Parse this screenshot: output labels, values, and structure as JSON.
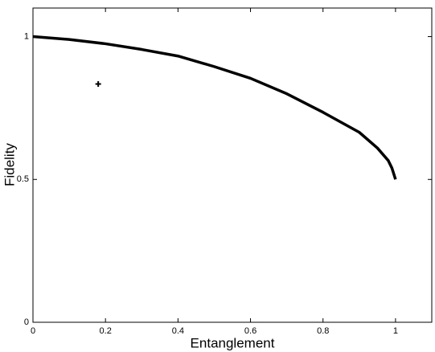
{
  "chart_data": {
    "type": "line",
    "x_label": "Entanglement",
    "y_label": "Fidelity",
    "xlim": [
      0,
      1.1
    ],
    "ylim": [
      0,
      1.1
    ],
    "xticks": [
      0,
      0.2,
      0.4,
      0.6,
      0.8,
      1
    ],
    "yticks": [
      0,
      0.5,
      1
    ],
    "grid": false,
    "series": [
      {
        "color": "#000000",
        "marker": "none",
        "x": [
          0,
          0.1,
          0.2,
          0.3,
          0.4,
          0.5,
          0.6,
          0.7,
          0.8,
          0.9,
          0.95,
          0.98,
          0.99,
          1
        ],
        "values": [
          1,
          0.99,
          0.975,
          0.955,
          0.932,
          0.895,
          0.854,
          0.8,
          0.735,
          0.665,
          0.61,
          0.566,
          0.54,
          0.5
        ]
      },
      {
        "color": "#000000",
        "marker": "+",
        "x": [
          0.18
        ],
        "values": [
          0.834
        ]
      }
    ]
  }
}
